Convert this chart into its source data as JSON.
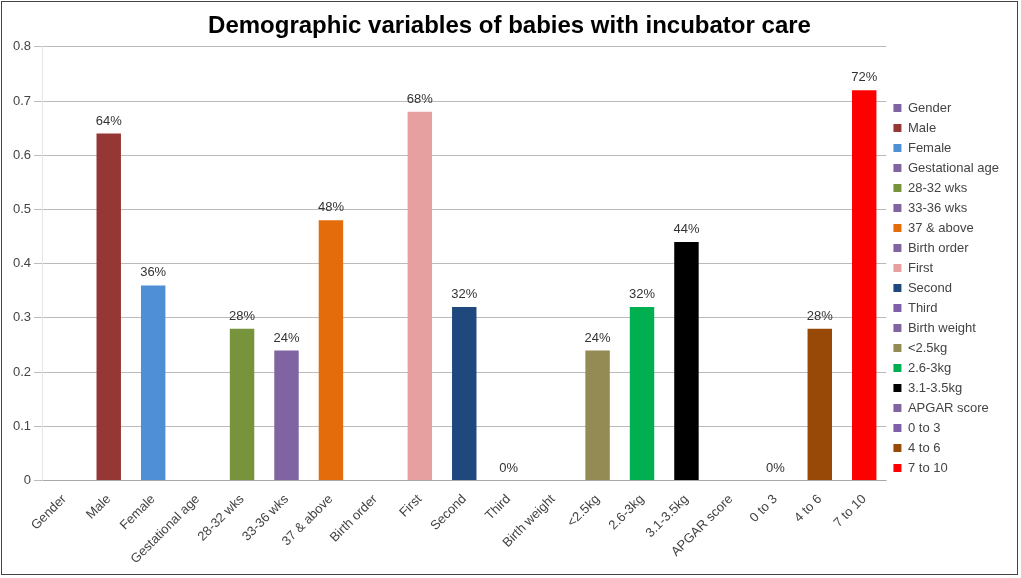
{
  "chart_data": {
    "type": "bar",
    "title": "Demographic variables of babies with incubator care",
    "categories": [
      "Gender",
      "Male",
      "Female",
      "Gestational age",
      "28-32 wks",
      "33-36 wks",
      "37 & above",
      "Birth order",
      "First",
      "Second",
      "Third",
      "Birth weight",
      "<2.5kg",
      "2.6-3kg",
      "3.1-3.5kg",
      "APGAR score",
      "0 to 3",
      "4 to 6",
      "7 to 10"
    ],
    "series": [
      {
        "name": "Gender",
        "color": "#8064a2",
        "values": [
          null,
          null,
          null,
          null,
          null,
          null,
          null,
          null,
          null,
          null,
          null,
          null,
          null,
          null,
          null,
          null,
          null,
          null,
          null
        ]
      },
      {
        "name": "Male",
        "color": "#953735",
        "values": [
          null,
          0.64,
          null,
          null,
          null,
          null,
          null,
          null,
          null,
          null,
          null,
          null,
          null,
          null,
          null,
          null,
          null,
          null,
          null
        ],
        "value_labels": [
          null,
          "64%",
          null,
          null,
          null,
          null,
          null,
          null,
          null,
          null,
          null,
          null,
          null,
          null,
          null,
          null,
          null,
          null,
          null
        ]
      },
      {
        "name": "Female",
        "color": "#4f8fd6",
        "values": [
          null,
          null,
          0.36,
          null,
          null,
          null,
          null,
          null,
          null,
          null,
          null,
          null,
          null,
          null,
          null,
          null,
          null,
          null,
          null
        ],
        "value_labels": [
          null,
          null,
          "36%",
          null,
          null,
          null,
          null,
          null,
          null,
          null,
          null,
          null,
          null,
          null,
          null,
          null,
          null,
          null,
          null
        ]
      },
      {
        "name": "Gestational age",
        "color": "#8064a2",
        "values": [
          null,
          null,
          null,
          null,
          null,
          null,
          null,
          null,
          null,
          null,
          null,
          null,
          null,
          null,
          null,
          null,
          null,
          null,
          null
        ]
      },
      {
        "name": "28-32 wks",
        "color": "#77933c",
        "values": [
          null,
          null,
          null,
          null,
          0.28,
          null,
          null,
          null,
          null,
          null,
          null,
          null,
          null,
          null,
          null,
          null,
          null,
          null,
          null
        ],
        "value_labels": [
          null,
          null,
          null,
          null,
          "28%",
          null,
          null,
          null,
          null,
          null,
          null,
          null,
          null,
          null,
          null,
          null,
          null,
          null,
          null
        ]
      },
      {
        "name": "33-36 wks",
        "color": "#8064a2",
        "values": [
          null,
          null,
          null,
          null,
          null,
          0.24,
          null,
          null,
          null,
          null,
          null,
          null,
          null,
          null,
          null,
          null,
          null,
          null,
          null
        ],
        "value_labels": [
          null,
          null,
          null,
          null,
          null,
          "24%",
          null,
          null,
          null,
          null,
          null,
          null,
          null,
          null,
          null,
          null,
          null,
          null,
          null
        ]
      },
      {
        "name": "37 & above",
        "color": "#e46c0a",
        "values": [
          null,
          null,
          null,
          null,
          null,
          null,
          0.48,
          null,
          null,
          null,
          null,
          null,
          null,
          null,
          null,
          null,
          null,
          null,
          null
        ],
        "value_labels": [
          null,
          null,
          null,
          null,
          null,
          null,
          "48%",
          null,
          null,
          null,
          null,
          null,
          null,
          null,
          null,
          null,
          null,
          null,
          null
        ]
      },
      {
        "name": "Birth order",
        "color": "#8064a2",
        "values": [
          null,
          null,
          null,
          null,
          null,
          null,
          null,
          null,
          null,
          null,
          null,
          null,
          null,
          null,
          null,
          null,
          null,
          null,
          null
        ]
      },
      {
        "name": "First",
        "color": "#e6a0a0",
        "values": [
          null,
          null,
          null,
          null,
          null,
          null,
          null,
          null,
          0.68,
          null,
          null,
          null,
          null,
          null,
          null,
          null,
          null,
          null,
          null
        ],
        "value_labels": [
          null,
          null,
          null,
          null,
          null,
          null,
          null,
          null,
          "68%",
          null,
          null,
          null,
          null,
          null,
          null,
          null,
          null,
          null,
          null
        ]
      },
      {
        "name": "Second",
        "color": "#1f497d",
        "values": [
          null,
          null,
          null,
          null,
          null,
          null,
          null,
          null,
          null,
          0.32,
          null,
          null,
          null,
          null,
          null,
          null,
          null,
          null,
          null
        ],
        "value_labels": [
          null,
          null,
          null,
          null,
          null,
          null,
          null,
          null,
          null,
          "32%",
          null,
          null,
          null,
          null,
          null,
          null,
          null,
          null,
          null
        ]
      },
      {
        "name": "Third",
        "color": "#7f5fa8",
        "values": [
          null,
          null,
          null,
          null,
          null,
          null,
          null,
          null,
          null,
          null,
          0,
          null,
          null,
          null,
          null,
          null,
          null,
          null,
          null
        ],
        "value_labels": [
          null,
          null,
          null,
          null,
          null,
          null,
          null,
          null,
          null,
          null,
          "0%",
          null,
          null,
          null,
          null,
          null,
          null,
          null,
          null
        ]
      },
      {
        "name": "Birth weight",
        "color": "#8064a2",
        "values": [
          null,
          null,
          null,
          null,
          null,
          null,
          null,
          null,
          null,
          null,
          null,
          null,
          null,
          null,
          null,
          null,
          null,
          null,
          null
        ]
      },
      {
        "name": "<2.5kg",
        "color": "#948a54",
        "values": [
          null,
          null,
          null,
          null,
          null,
          null,
          null,
          null,
          null,
          null,
          null,
          null,
          0.24,
          null,
          null,
          null,
          null,
          null,
          null
        ],
        "value_labels": [
          null,
          null,
          null,
          null,
          null,
          null,
          null,
          null,
          null,
          null,
          null,
          null,
          "24%",
          null,
          null,
          null,
          null,
          null,
          null
        ]
      },
      {
        "name": "2.6-3kg",
        "color": "#00b050",
        "values": [
          null,
          null,
          null,
          null,
          null,
          null,
          null,
          null,
          null,
          null,
          null,
          null,
          null,
          0.32,
          null,
          null,
          null,
          null,
          null
        ],
        "value_labels": [
          null,
          null,
          null,
          null,
          null,
          null,
          null,
          null,
          null,
          null,
          null,
          null,
          null,
          "32%",
          null,
          null,
          null,
          null,
          null
        ]
      },
      {
        "name": "3.1-3.5kg",
        "color": "#000000",
        "values": [
          null,
          null,
          null,
          null,
          null,
          null,
          null,
          null,
          null,
          null,
          null,
          null,
          null,
          null,
          0.44,
          null,
          null,
          null,
          null
        ],
        "value_labels": [
          null,
          null,
          null,
          null,
          null,
          null,
          null,
          null,
          null,
          null,
          null,
          null,
          null,
          null,
          "44%",
          null,
          null,
          null,
          null
        ]
      },
      {
        "name": "APGAR score",
        "color": "#8064a2",
        "values": [
          null,
          null,
          null,
          null,
          null,
          null,
          null,
          null,
          null,
          null,
          null,
          null,
          null,
          null,
          null,
          null,
          null,
          null,
          null
        ]
      },
      {
        "name": "0 to 3",
        "color": "#7f5fa8",
        "values": [
          null,
          null,
          null,
          null,
          null,
          null,
          null,
          null,
          null,
          null,
          null,
          null,
          null,
          null,
          null,
          null,
          0,
          null,
          null
        ],
        "value_labels": [
          null,
          null,
          null,
          null,
          null,
          null,
          null,
          null,
          null,
          null,
          null,
          null,
          null,
          null,
          null,
          null,
          "0%",
          null,
          null
        ]
      },
      {
        "name": "4 to 6",
        "color": "#984807",
        "values": [
          null,
          null,
          null,
          null,
          null,
          null,
          null,
          null,
          null,
          null,
          null,
          null,
          null,
          null,
          null,
          null,
          null,
          0.28,
          null
        ],
        "value_labels": [
          null,
          null,
          null,
          null,
          null,
          null,
          null,
          null,
          null,
          null,
          null,
          null,
          null,
          null,
          null,
          null,
          null,
          "28%",
          null
        ]
      },
      {
        "name": "7 to 10",
        "color": "#ff0000",
        "values": [
          null,
          null,
          null,
          null,
          null,
          null,
          null,
          null,
          null,
          null,
          null,
          null,
          null,
          null,
          null,
          null,
          null,
          null,
          0.72
        ],
        "value_labels": [
          null,
          null,
          null,
          null,
          null,
          null,
          null,
          null,
          null,
          null,
          null,
          null,
          null,
          null,
          null,
          null,
          null,
          null,
          "72%"
        ]
      }
    ],
    "ylim": [
      0,
      0.8
    ],
    "yticks": [
      0,
      0.1,
      0.2,
      0.3,
      0.4,
      0.5,
      0.6,
      0.7,
      0.8
    ],
    "grid": "y",
    "legend": "right"
  }
}
